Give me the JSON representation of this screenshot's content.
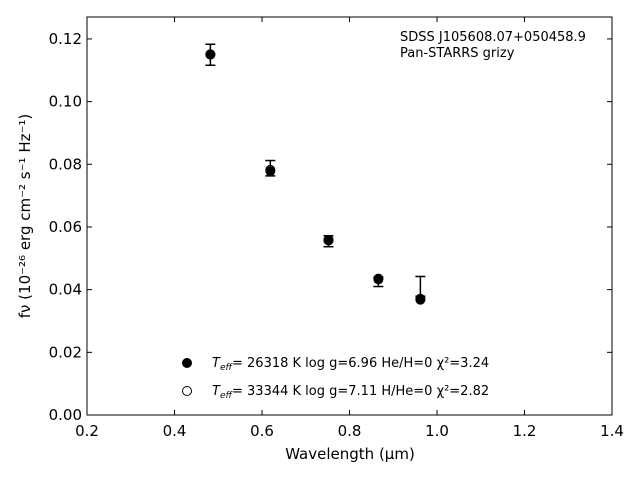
{
  "chart_data": {
    "type": "scatter",
    "xlabel": "Wavelength (μm)",
    "ylabel": "fν (10⁻²⁶ erg cm⁻² s⁻¹ Hz⁻¹)",
    "xlim": [
      0.2,
      1.4
    ],
    "ylim": [
      0.0,
      0.127
    ],
    "xticks": [
      "0.2",
      "0.4",
      "0.6",
      "0.8",
      "1.0",
      "1.2",
      "1.4"
    ],
    "yticks": [
      "0.00",
      "0.02",
      "0.04",
      "0.06",
      "0.08",
      "0.10",
      "0.12"
    ],
    "annotation": [
      "SDSS J105608.07+050458.9",
      "Pan-STARRS grizy"
    ],
    "legend_placement": "lower-center",
    "grid": false,
    "observed": {
      "x": [
        0.482,
        0.619,
        0.752,
        0.866,
        0.962
      ],
      "y": [
        0.1151,
        0.0789,
        0.0557,
        0.0422,
        0.0411
      ],
      "yerr_low": [
        0.1116,
        0.0763,
        0.0537,
        0.041,
        0.0379
      ],
      "yerr_high": [
        0.1183,
        0.0812,
        0.0572,
        0.044,
        0.0442
      ]
    },
    "series": [
      {
        "marker": "filled",
        "label": "= 26318 K  log g=6.96  He/H=0  χ²=3.24",
        "x": [
          0.482,
          0.619,
          0.752,
          0.866,
          0.962
        ],
        "y": [
          0.1151,
          0.0778,
          0.0557,
          0.0433,
          0.0368
        ]
      },
      {
        "marker": "open",
        "label": "= 33344 K  log g=7.11  H/He=0  χ²=2.82",
        "x": [
          0.482,
          0.619,
          0.752,
          0.866,
          0.962
        ],
        "y": [
          0.115,
          0.0782,
          0.0559,
          0.0435,
          0.0371
        ]
      }
    ],
    "legend_symbol": "T",
    "legend_symbol_sub": "eff"
  }
}
